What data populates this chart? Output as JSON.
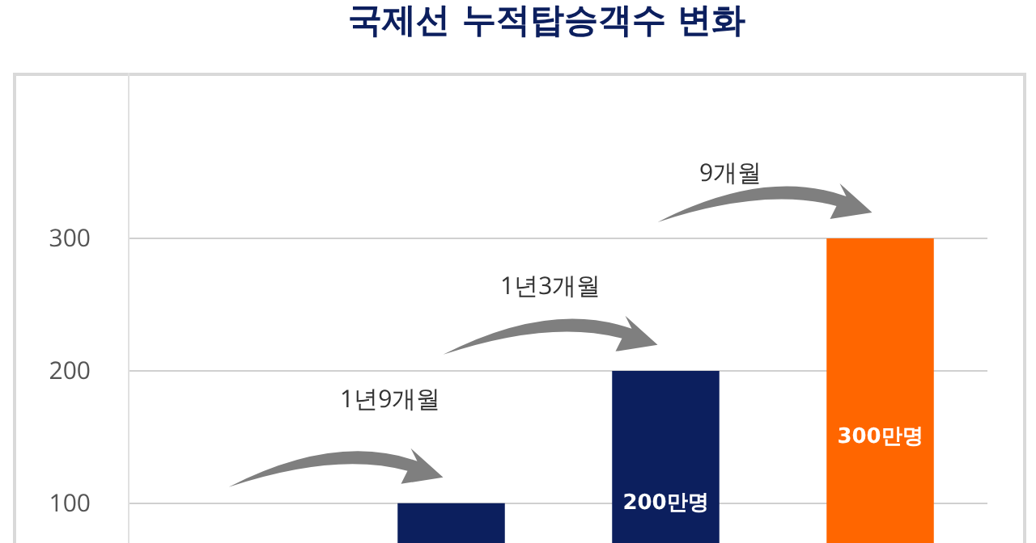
{
  "chart_data": {
    "type": "bar",
    "title": "국제선 누적탑승객수 변화",
    "categories": [
      null,
      null,
      null,
      null
    ],
    "values": [
      null,
      100,
      200,
      300
    ],
    "colors": [
      "#0c1f5e",
      "#0c1f5e",
      "#0c1f5e",
      "#ff6600"
    ],
    "value_labels": [
      null,
      null,
      "200만명",
      "300만명"
    ],
    "ylim": [
      70,
      425
    ],
    "yticks": [
      100,
      200,
      300
    ],
    "grid": "y",
    "tick_labels": "y",
    "annotations": [
      "1년9개월",
      "1년3개월",
      "9개월"
    ]
  }
}
